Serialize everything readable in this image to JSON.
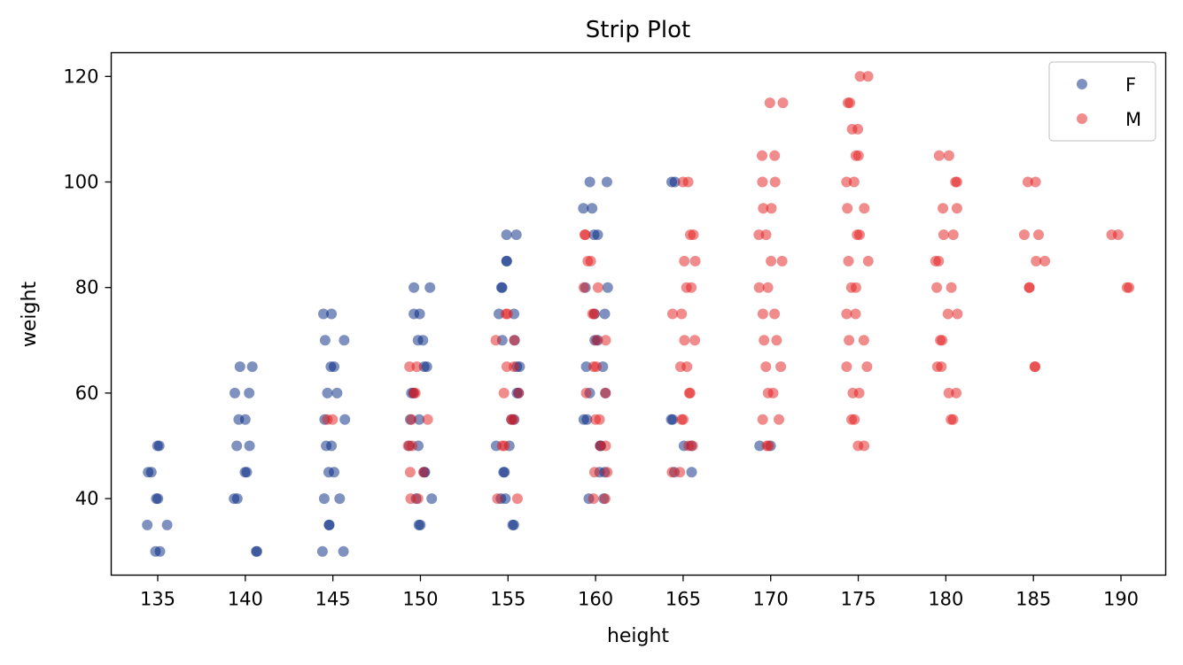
{
  "chart_data": {
    "type": "scatter",
    "title": "Strip Plot",
    "xlabel": "height",
    "ylabel": "weight",
    "categories": [
      135,
      140,
      145,
      150,
      155,
      160,
      165,
      170,
      175,
      180,
      185,
      190
    ],
    "yticks": [
      40,
      60,
      80,
      100,
      120
    ],
    "ylim": [
      25.5,
      124.5
    ],
    "grid": false,
    "legend_position": "top-right",
    "series": [
      {
        "name": "F",
        "color": "#00247d",
        "points": [
          [
            135,
            50
          ],
          [
            135,
            45
          ],
          [
            135,
            40
          ],
          [
            135,
            35
          ],
          [
            135,
            30
          ],
          [
            140,
            65
          ],
          [
            140,
            60
          ],
          [
            140,
            55
          ],
          [
            140,
            50
          ],
          [
            140,
            45
          ],
          [
            140,
            40
          ],
          [
            140,
            30
          ],
          [
            145,
            75
          ],
          [
            145,
            70
          ],
          [
            145,
            65
          ],
          [
            145,
            60
          ],
          [
            145,
            55
          ],
          [
            145,
            50
          ],
          [
            145,
            45
          ],
          [
            145,
            40
          ],
          [
            145,
            35
          ],
          [
            145,
            30
          ],
          [
            150,
            80
          ],
          [
            150,
            75
          ],
          [
            150,
            70
          ],
          [
            150,
            65
          ],
          [
            150,
            60
          ],
          [
            150,
            55
          ],
          [
            150,
            50
          ],
          [
            150,
            45
          ],
          [
            150,
            40
          ],
          [
            150,
            35
          ],
          [
            155,
            90
          ],
          [
            155,
            85
          ],
          [
            155,
            80
          ],
          [
            155,
            75
          ],
          [
            155,
            70
          ],
          [
            155,
            65
          ],
          [
            155,
            60
          ],
          [
            155,
            55
          ],
          [
            155,
            50
          ],
          [
            155,
            45
          ],
          [
            155,
            40
          ],
          [
            155,
            35
          ],
          [
            160,
            100
          ],
          [
            160,
            95
          ],
          [
            160,
            90
          ],
          [
            160,
            80
          ],
          [
            160,
            75
          ],
          [
            160,
            70
          ],
          [
            160,
            65
          ],
          [
            160,
            60
          ],
          [
            160,
            55
          ],
          [
            160,
            50
          ],
          [
            160,
            45
          ],
          [
            160,
            40
          ],
          [
            165,
            100
          ],
          [
            165,
            55
          ],
          [
            165,
            50
          ],
          [
            165,
            45
          ],
          [
            170,
            50
          ]
        ]
      },
      {
        "name": "M",
        "color": "#e41a1c",
        "points": [
          [
            145,
            55
          ],
          [
            150,
            65
          ],
          [
            150,
            60
          ],
          [
            150,
            55
          ],
          [
            150,
            50
          ],
          [
            150,
            45
          ],
          [
            150,
            40
          ],
          [
            155,
            75
          ],
          [
            155,
            70
          ],
          [
            155,
            65
          ],
          [
            155,
            60
          ],
          [
            155,
            55
          ],
          [
            155,
            50
          ],
          [
            155,
            40
          ],
          [
            160,
            90
          ],
          [
            160,
            85
          ],
          [
            160,
            80
          ],
          [
            160,
            75
          ],
          [
            160,
            70
          ],
          [
            160,
            65
          ],
          [
            160,
            60
          ],
          [
            160,
            55
          ],
          [
            160,
            50
          ],
          [
            160,
            45
          ],
          [
            160,
            40
          ],
          [
            165,
            100
          ],
          [
            165,
            90
          ],
          [
            165,
            85
          ],
          [
            165,
            80
          ],
          [
            165,
            75
          ],
          [
            165,
            70
          ],
          [
            165,
            65
          ],
          [
            165,
            60
          ],
          [
            165,
            55
          ],
          [
            165,
            50
          ],
          [
            165,
            45
          ],
          [
            170,
            115
          ],
          [
            170,
            105
          ],
          [
            170,
            100
          ],
          [
            170,
            95
          ],
          [
            170,
            90
          ],
          [
            170,
            85
          ],
          [
            170,
            80
          ],
          [
            170,
            75
          ],
          [
            170,
            70
          ],
          [
            170,
            65
          ],
          [
            170,
            60
          ],
          [
            170,
            55
          ],
          [
            170,
            50
          ],
          [
            175,
            120
          ],
          [
            175,
            115
          ],
          [
            175,
            110
          ],
          [
            175,
            105
          ],
          [
            175,
            100
          ],
          [
            175,
            95
          ],
          [
            175,
            90
          ],
          [
            175,
            85
          ],
          [
            175,
            80
          ],
          [
            175,
            75
          ],
          [
            175,
            70
          ],
          [
            175,
            65
          ],
          [
            175,
            60
          ],
          [
            175,
            55
          ],
          [
            175,
            50
          ],
          [
            180,
            105
          ],
          [
            180,
            100
          ],
          [
            180,
            95
          ],
          [
            180,
            90
          ],
          [
            180,
            85
          ],
          [
            180,
            80
          ],
          [
            180,
            75
          ],
          [
            180,
            70
          ],
          [
            180,
            65
          ],
          [
            180,
            60
          ],
          [
            180,
            55
          ],
          [
            185,
            100
          ],
          [
            185,
            90
          ],
          [
            185,
            85
          ],
          [
            185,
            80
          ],
          [
            185,
            65
          ],
          [
            190,
            90
          ],
          [
            190,
            80
          ]
        ]
      }
    ]
  }
}
